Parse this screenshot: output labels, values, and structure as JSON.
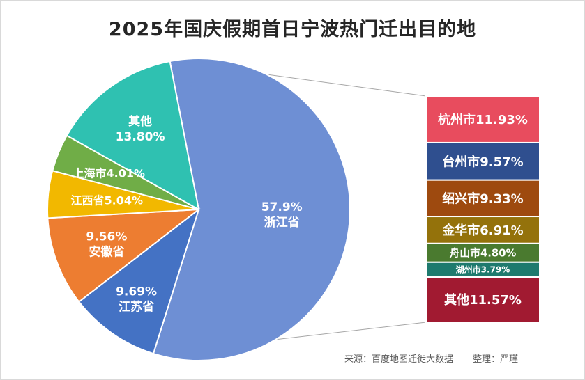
{
  "chart_data": {
    "type": "bar-of-pie",
    "title": "2025年国庆假期首日宁波热门迁出目的地",
    "pie": [
      {
        "name": "浙江省",
        "value": 57.9,
        "label": "57.9%",
        "color": "#6e8fd4"
      },
      {
        "name": "江苏省",
        "value": 9.69,
        "label": "9.69%",
        "color": "#4472c4"
      },
      {
        "name": "安徽省",
        "value": 9.56,
        "label": "9.56%",
        "color": "#ed7d31"
      },
      {
        "name": "江西省",
        "value": 5.04,
        "label": "江西省5.04%",
        "color": "#f2b800"
      },
      {
        "name": "上海市",
        "value": 4.01,
        "label": "上海市4.01%",
        "color": "#70ad47"
      },
      {
        "name": "其他",
        "value": 13.8,
        "label": "13.80%",
        "color": "#2fc1b1"
      }
    ],
    "breakdown_of": "浙江省",
    "breakdown": [
      {
        "name": "杭州市",
        "value": 11.93,
        "label": "杭州市11.93%",
        "color": "#e84c5e"
      },
      {
        "name": "台州市",
        "value": 9.57,
        "label": "台州市9.57%",
        "color": "#2f4f8f"
      },
      {
        "name": "绍兴市",
        "value": 9.33,
        "label": "绍兴市9.33%",
        "color": "#9e4a0f"
      },
      {
        "name": "金华市",
        "value": 6.91,
        "label": "金华市6.91%",
        "color": "#94720b"
      },
      {
        "name": "舟山市",
        "value": 4.8,
        "label": "舟山市4.80%",
        "color": "#4a7a2f"
      },
      {
        "name": "湖州市",
        "value": 3.79,
        "label": "湖州市3.79%",
        "color": "#1e7a6e"
      },
      {
        "name": "其他",
        "value": 11.57,
        "label": "其他11.57%",
        "color": "#a11a31"
      }
    ]
  },
  "footer": {
    "source": "来源：百度地图迁徙大数据",
    "author": "整理：严瑾"
  }
}
